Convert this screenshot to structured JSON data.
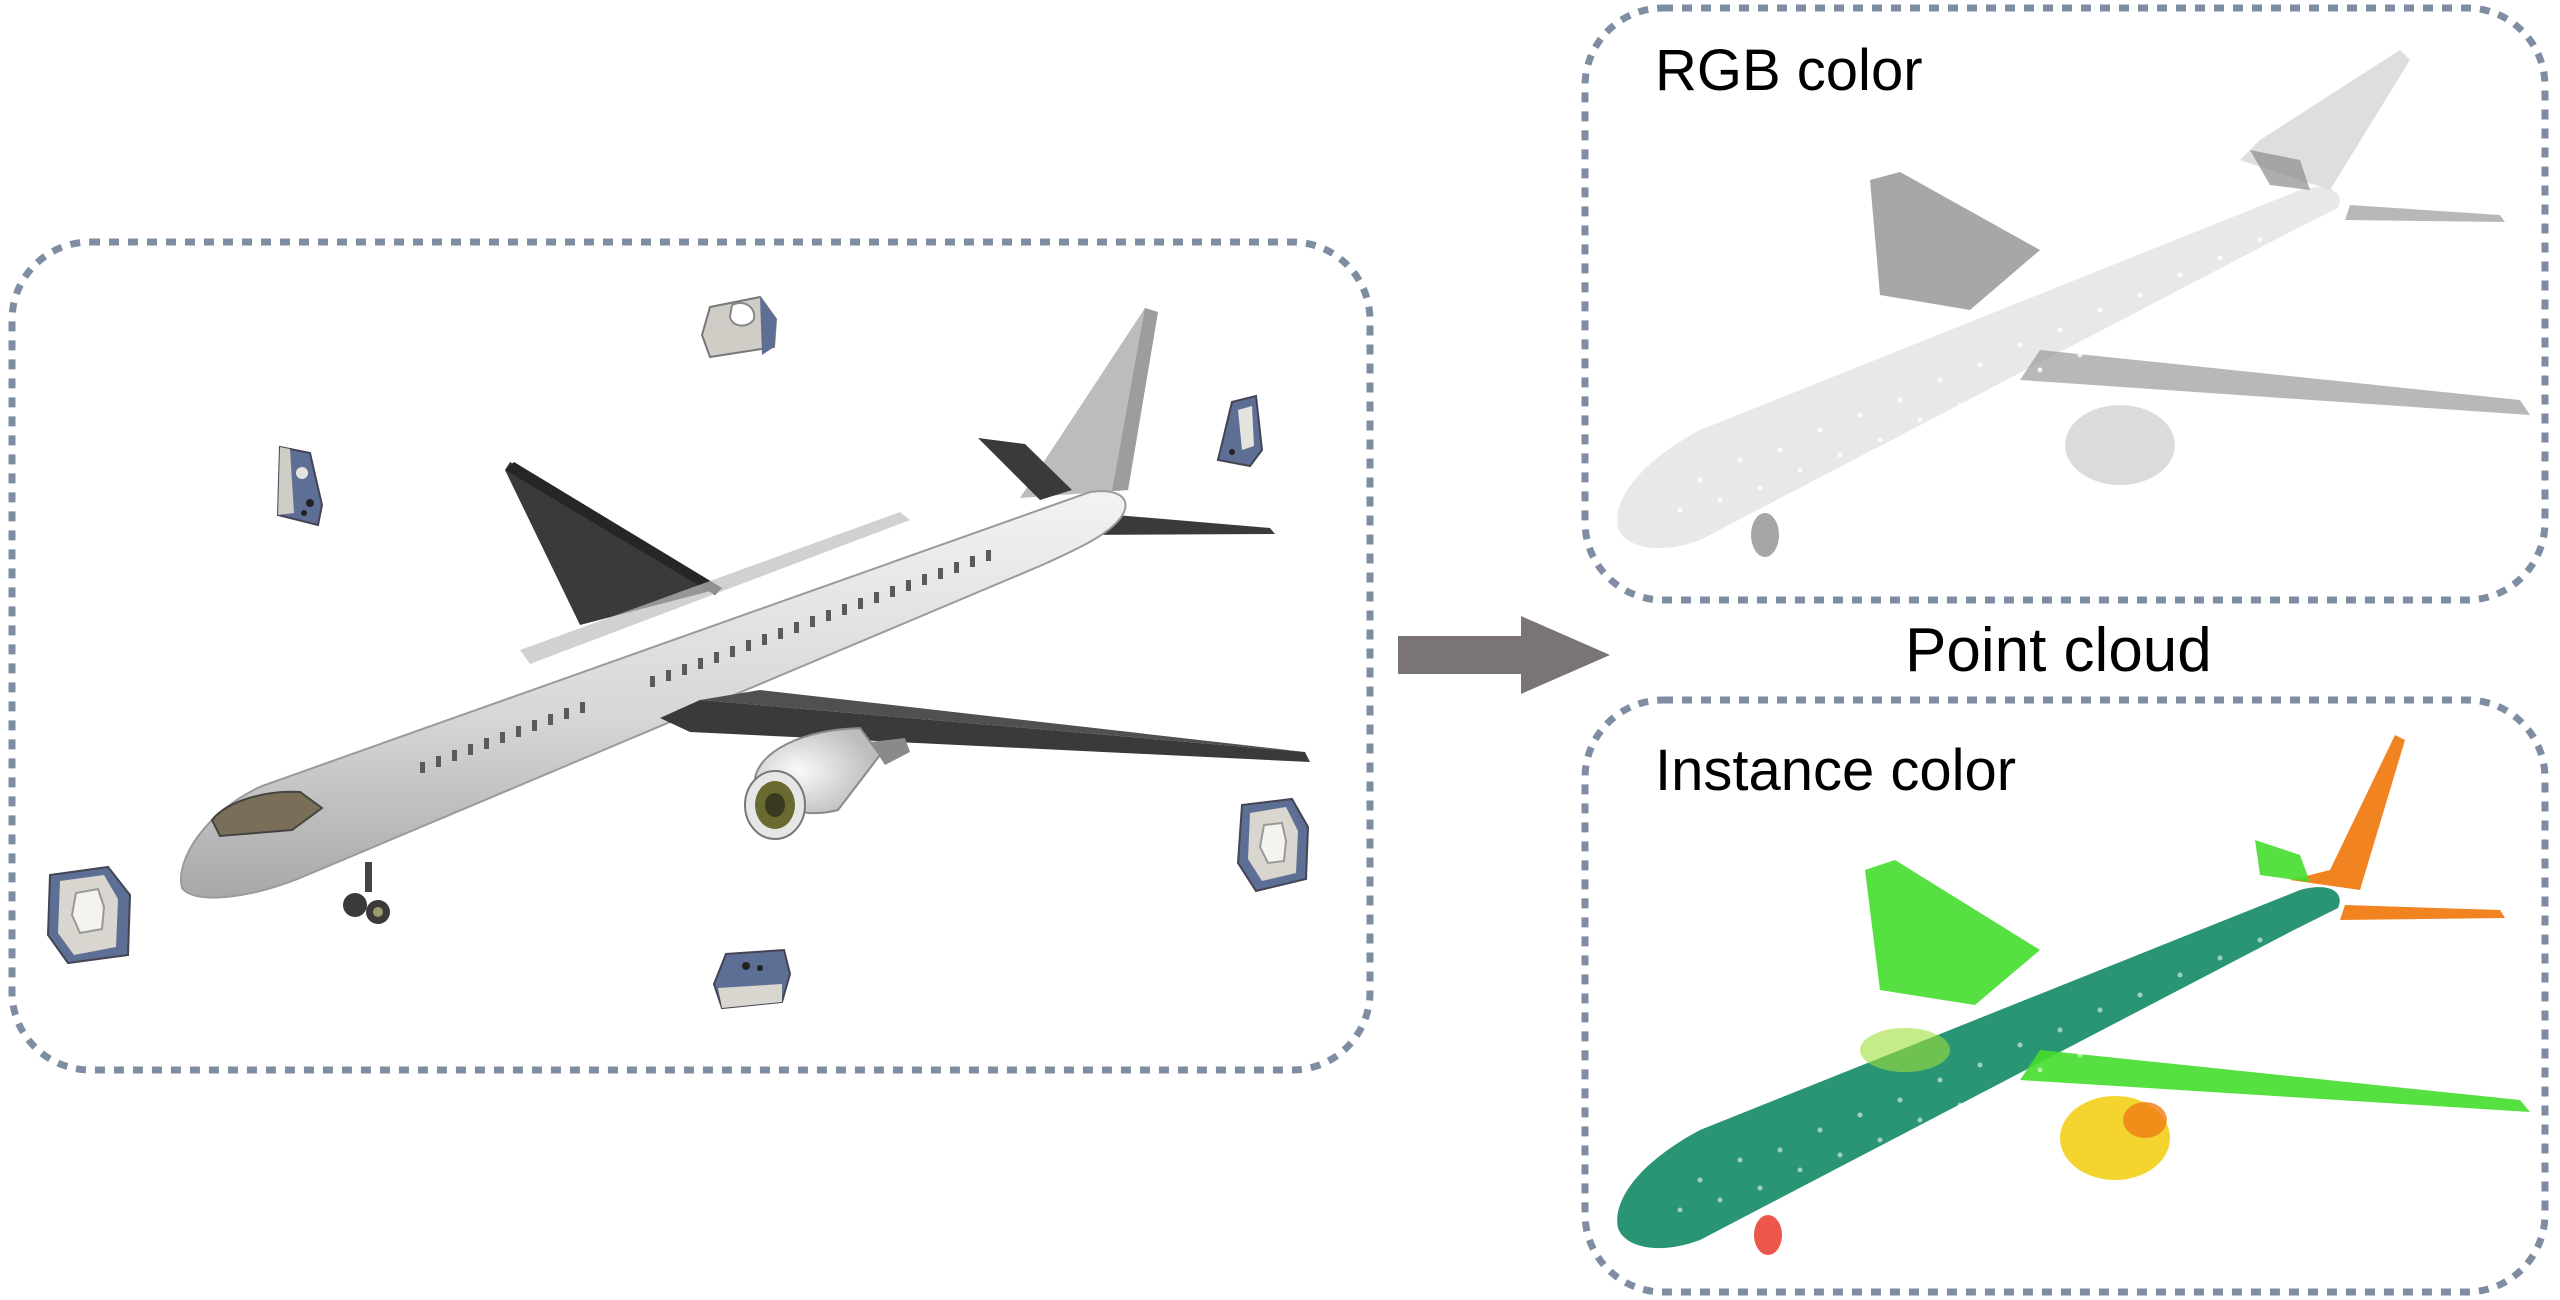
{
  "labels": {
    "rgb_color": "RGB color",
    "point_cloud": "Point cloud",
    "instance_color": "Instance color"
  },
  "colors": {
    "frame_dash": "#7f8da3",
    "arrow": "#7a7474",
    "fuselage": "#dcdcdc",
    "wing_dark": "#3b3b3b",
    "rgb_points": "#b9b9b9",
    "rgb_points_dark": "#7a7a7a",
    "instance_body": "#1f8f6e",
    "instance_wing": "#44dd2c",
    "instance_tail": "#f07c14",
    "instance_engine": "#f3d01a",
    "instance_gear": "#e83a2a",
    "scanner_body": "#5e6f95",
    "scanner_face": "#d8d6cf"
  },
  "icons": {
    "scanner": "3d-scanner-icon",
    "arrow": "right-arrow-icon"
  }
}
